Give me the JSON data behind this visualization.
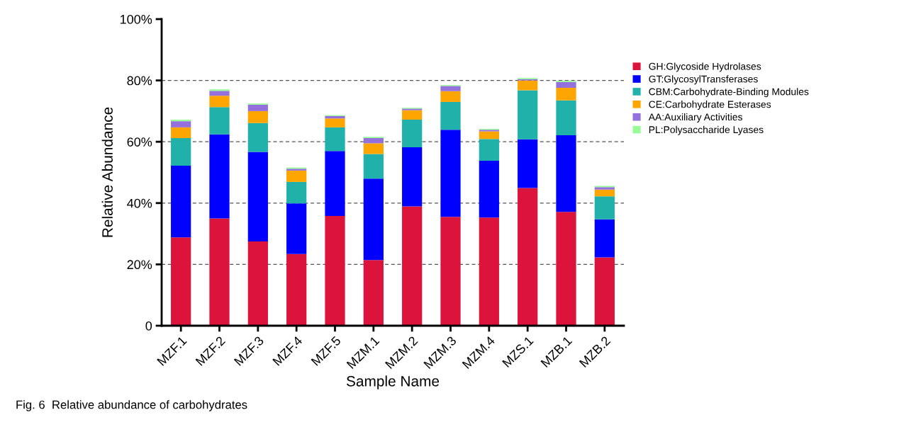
{
  "chart_data": {
    "type": "bar",
    "stacked": true,
    "xlabel": "Sample Name",
    "ylabel": "Relative Abundance",
    "categories": [
      "MZF.1",
      "MZF.2",
      "MZF.3",
      "MZF.4",
      "MZF.5",
      "MZM.1",
      "MZM.2",
      "MZM.3",
      "MZM.4",
      "MZS.1",
      "MZB.1",
      "MZB.2"
    ],
    "series": [
      {
        "name": "GH:Glycoside Hydrolases",
        "color": "#dc143c",
        "values": [
          28.8,
          35.0,
          27.5,
          23.4,
          35.8,
          21.4,
          38.9,
          35.5,
          35.3,
          44.9,
          37.1,
          22.3
        ]
      },
      {
        "name": "GT:GlycosylTransferases",
        "color": "#0000ff",
        "values": [
          23.4,
          27.4,
          29.2,
          16.5,
          21.2,
          26.6,
          19.3,
          28.4,
          18.5,
          15.9,
          25.0,
          12.4
        ]
      },
      {
        "name": "CBM:Carbohydrate-Binding Modules",
        "color": "#20b2aa",
        "values": [
          9.0,
          8.9,
          9.4,
          7.0,
          7.7,
          8.0,
          9.0,
          9.1,
          7.1,
          16.0,
          11.4,
          7.5
        ]
      },
      {
        "name": "CE:Carbohydrate Esterases",
        "color": "#ffa500",
        "values": [
          3.5,
          3.7,
          3.9,
          3.7,
          2.9,
          3.5,
          3.1,
          3.5,
          2.5,
          3.2,
          4.1,
          2.2
        ]
      },
      {
        "name": "AA:Auxiliary Activities",
        "color": "#9370db",
        "values": [
          2.0,
          1.6,
          2.1,
          0.6,
          0.8,
          1.7,
          0.5,
          1.7,
          0.5,
          0.4,
          1.9,
          0.8
        ]
      },
      {
        "name": "PL:Polysaccharide Lyases",
        "color": "#98fb98",
        "values": [
          0.5,
          0.5,
          0.4,
          0.4,
          0.3,
          0.4,
          0.3,
          0.3,
          0.3,
          0.4,
          0.4,
          0.4
        ]
      }
    ],
    "ylim": [
      0,
      100
    ],
    "yticks": [
      {
        "value": 0,
        "label": "0"
      },
      {
        "value": 20,
        "label": "20%"
      },
      {
        "value": 40,
        "label": "40%"
      },
      {
        "value": 60,
        "label": "60%"
      },
      {
        "value": 80,
        "label": "80%"
      },
      {
        "value": 100,
        "label": "100%"
      }
    ],
    "grid": "y",
    "legend": "right",
    "annotations": [
      "Fig. 6  Relative abundance of carbohydrates"
    ]
  }
}
